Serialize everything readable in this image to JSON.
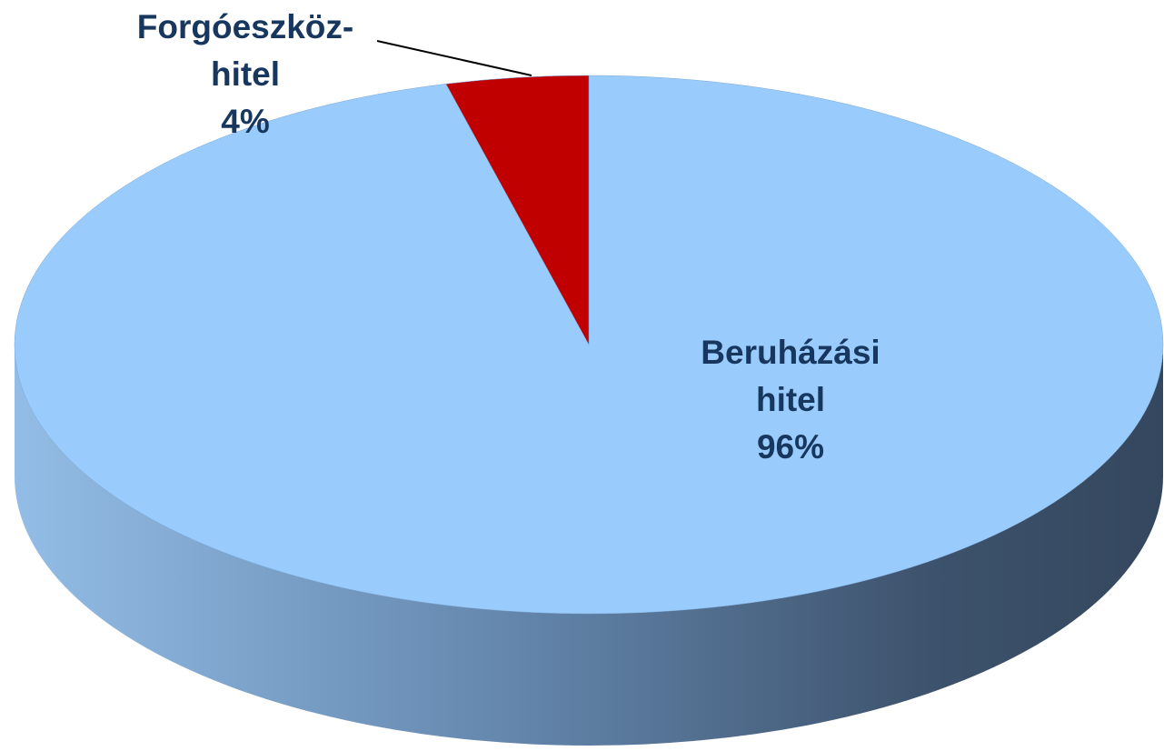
{
  "chart_data": {
    "type": "pie",
    "categories": [
      [
        "Beruházási",
        "hitel"
      ],
      [
        "Forgóeszköz-",
        "hitel"
      ]
    ],
    "values": [
      96,
      4
    ],
    "value_labels": [
      "96%",
      "4%"
    ],
    "colors": [
      "#99ccfc",
      "#c00000"
    ]
  }
}
